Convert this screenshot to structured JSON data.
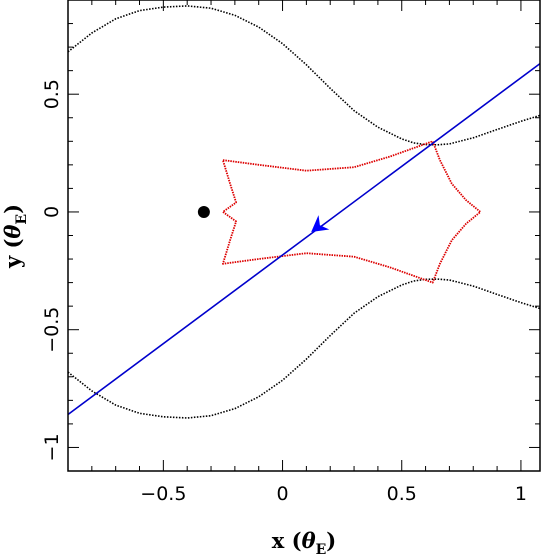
{
  "chart_data": {
    "type": "line",
    "title": "",
    "xlabel": {
      "main": "x (",
      "symbol": "θ",
      "sub": "E",
      "close": ")"
    },
    "ylabel": {
      "main": "y (",
      "symbol": "θ",
      "sub": "E",
      "close": ")"
    },
    "xlim": [
      -0.9,
      1.08
    ],
    "ylim": [
      -1.1,
      0.9
    ],
    "x_ticks": [
      {
        "value": -0.5,
        "label": "−0.5"
      },
      {
        "value": 0,
        "label": "0"
      },
      {
        "value": 0.5,
        "label": "0.5"
      },
      {
        "value": 1,
        "label": "1"
      }
    ],
    "y_ticks": [
      {
        "value": -1,
        "label": "−1"
      },
      {
        "value": -0.5,
        "label": "−0.5"
      },
      {
        "value": 0,
        "label": "0"
      },
      {
        "value": 0.5,
        "label": "0.5"
      }
    ],
    "colors": {
      "critical_curve": "#000000",
      "caustic": "#dd0000",
      "trajectory": "#0000cc",
      "arrow": "#0000ff",
      "lens": "#000000"
    },
    "series": [
      {
        "kind": "critical-curve-upper",
        "points": [
          [
            -0.9,
            0.68
          ],
          [
            -0.8,
            0.76
          ],
          [
            -0.7,
            0.82
          ],
          [
            -0.6,
            0.855
          ],
          [
            -0.5,
            0.87
          ],
          [
            -0.4,
            0.875
          ],
          [
            -0.3,
            0.865
          ],
          [
            -0.2,
            0.835
          ],
          [
            -0.1,
            0.785
          ],
          [
            0,
            0.715
          ],
          [
            0.1,
            0.625
          ],
          [
            0.2,
            0.525
          ],
          [
            0.3,
            0.43
          ],
          [
            0.4,
            0.36
          ],
          [
            0.5,
            0.31
          ],
          [
            0.55,
            0.293
          ],
          [
            0.6,
            0.286
          ],
          [
            0.65,
            0.285
          ],
          [
            0.7,
            0.289
          ],
          [
            0.8,
            0.315
          ],
          [
            0.9,
            0.35
          ],
          [
            1.0,
            0.385
          ],
          [
            1.08,
            0.41
          ]
        ]
      },
      {
        "kind": "critical-curve-lower",
        "points": [
          [
            -0.9,
            -0.68
          ],
          [
            -0.8,
            -0.76
          ],
          [
            -0.7,
            -0.82
          ],
          [
            -0.6,
            -0.855
          ],
          [
            -0.5,
            -0.87
          ],
          [
            -0.4,
            -0.875
          ],
          [
            -0.3,
            -0.865
          ],
          [
            -0.2,
            -0.835
          ],
          [
            -0.1,
            -0.785
          ],
          [
            0,
            -0.715
          ],
          [
            0.1,
            -0.625
          ],
          [
            0.2,
            -0.525
          ],
          [
            0.3,
            -0.43
          ],
          [
            0.4,
            -0.36
          ],
          [
            0.5,
            -0.31
          ],
          [
            0.55,
            -0.293
          ],
          [
            0.6,
            -0.286
          ],
          [
            0.65,
            -0.285
          ],
          [
            0.7,
            -0.289
          ],
          [
            0.8,
            -0.315
          ],
          [
            0.9,
            -0.35
          ],
          [
            1.0,
            -0.385
          ],
          [
            1.08,
            -0.41
          ]
        ]
      },
      {
        "kind": "caustic",
        "points": [
          [
            -0.25,
            0.22
          ],
          [
            -0.1,
            0.2
          ],
          [
            0.1,
            0.175
          ],
          [
            0.3,
            0.19
          ],
          [
            0.45,
            0.235
          ],
          [
            0.63,
            0.3
          ],
          [
            0.66,
            0.22
          ],
          [
            0.71,
            0.12
          ],
          [
            0.77,
            0.05
          ],
          [
            0.83,
            0.0
          ],
          [
            0.77,
            -0.05
          ],
          [
            0.71,
            -0.12
          ],
          [
            0.66,
            -0.22
          ],
          [
            0.63,
            -0.3
          ],
          [
            0.45,
            -0.235
          ],
          [
            0.3,
            -0.19
          ],
          [
            0.1,
            -0.175
          ],
          [
            -0.1,
            -0.2
          ],
          [
            -0.25,
            -0.22
          ],
          [
            -0.22,
            -0.12
          ],
          [
            -0.195,
            -0.04
          ],
          [
            -0.25,
            0.0
          ],
          [
            -0.195,
            0.04
          ],
          [
            -0.22,
            0.12
          ],
          [
            -0.25,
            0.22
          ]
        ]
      },
      {
        "kind": "source-trajectory",
        "points": [
          [
            -0.9,
            -0.86
          ],
          [
            1.08,
            0.63
          ]
        ]
      }
    ],
    "arrow": {
      "at": [
        0.12,
        -0.085
      ],
      "toward": [
        0.09,
        -0.108
      ]
    },
    "lens": {
      "x": -0.33,
      "y": 0.0
    }
  }
}
